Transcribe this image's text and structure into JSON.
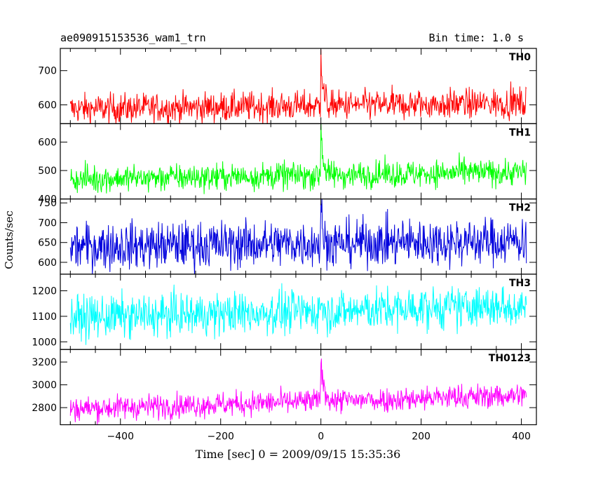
{
  "header": {
    "left": "ae090915153536_wam1_trn",
    "right": "Bin time: 1.0 s"
  },
  "chart_data": {
    "type": "line",
    "xlabel": "Time [sec] 0 = 2009/09/15 15:35:36",
    "ylabel": "Counts/sec",
    "xlim": [
      -520,
      430
    ],
    "x_ticks": [
      -400,
      -200,
      0,
      200,
      400
    ],
    "x_tick_labels": [
      "−400",
      "−200",
      "0",
      "200",
      "400"
    ],
    "x_range": [
      -500,
      410
    ],
    "bin_time_s": 1.0,
    "grid": false,
    "panels": [
      {
        "name": "TH0",
        "color": "#ff0000",
        "ylim": [
          545,
          765
        ],
        "ticks": [
          600,
          700
        ],
        "tick_labels": [
          "600",
          "700"
        ],
        "profile": {
          "level_start": 588,
          "level_end": 605,
          "noise": 22,
          "peak_height": 170,
          "decay_s": 4
        }
      },
      {
        "name": "TH1",
        "color": "#00ff00",
        "ylim": [
          400,
          665
        ],
        "ticks": [
          400,
          500,
          600
        ],
        "tick_labels": [
          "400",
          "500",
          "600"
        ],
        "profile": {
          "level_start": 470,
          "level_end": 495,
          "noise": 24,
          "peak_height": 185,
          "decay_s": 4
        }
      },
      {
        "name": "TH2",
        "color": "#0000dd",
        "ylim": [
          570,
          760
        ],
        "ticks": [
          600,
          650,
          700,
          750
        ],
        "tick_labels": [
          "600",
          "650",
          "700",
          "750"
        ],
        "profile": {
          "level_start": 640,
          "level_end": 655,
          "noise": 30,
          "peak_height": 100,
          "decay_s": 3
        }
      },
      {
        "name": "TH3",
        "color": "#00ffff",
        "ylim": [
          970,
          1265
        ],
        "ticks": [
          1000,
          1100,
          1200
        ],
        "tick_labels": [
          "1000",
          "1100",
          "1200"
        ],
        "profile": {
          "level_start": 1095,
          "level_end": 1140,
          "noise": 42,
          "peak_height": 80,
          "decay_s": 3
        }
      },
      {
        "name": "TH0123",
        "color": "#ff00ff",
        "ylim": [
          2650,
          3310
        ],
        "ticks": [
          2800,
          3000,
          3200
        ],
        "tick_labels": [
          "2800",
          "3000",
          "3200"
        ],
        "profile": {
          "level_start": 2790,
          "level_end": 2910,
          "noise": 55,
          "peak_height": 420,
          "decay_s": 5
        }
      }
    ]
  }
}
